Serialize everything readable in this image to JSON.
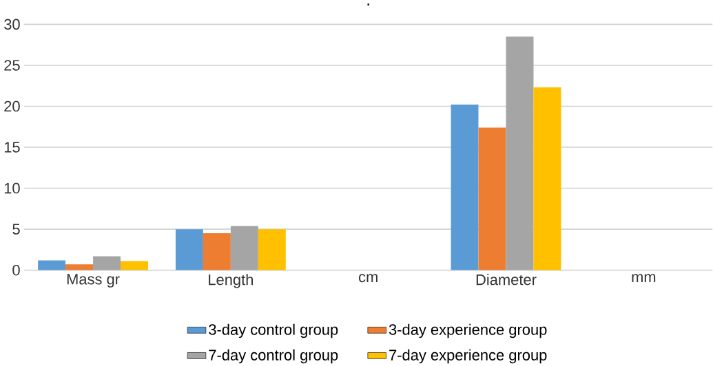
{
  "chart_data": {
    "type": "bar",
    "title": ".",
    "categories": [
      "Mass gr",
      "Length",
      "cm",
      "Diameter",
      "mm"
    ],
    "series": [
      {
        "name": "3-day control group",
        "color": "#5b9bd5",
        "values": [
          1.2,
          5.0,
          null,
          20.2,
          null
        ]
      },
      {
        "name": "3-day experience group",
        "color": "#ed7d31",
        "values": [
          0.7,
          4.5,
          null,
          17.4,
          null
        ]
      },
      {
        "name": "7-day control group",
        "color": "#a5a5a5",
        "values": [
          1.7,
          5.4,
          null,
          28.5,
          null
        ]
      },
      {
        "name": "7-day experience group",
        "color": "#ffc000",
        "values": [
          1.1,
          5.0,
          null,
          22.3,
          null
        ]
      }
    ],
    "ylim": [
      0,
      30
    ],
    "yticks": [
      0,
      5,
      10,
      15,
      20,
      25,
      30
    ],
    "grid": "y",
    "legend": "bottom"
  }
}
